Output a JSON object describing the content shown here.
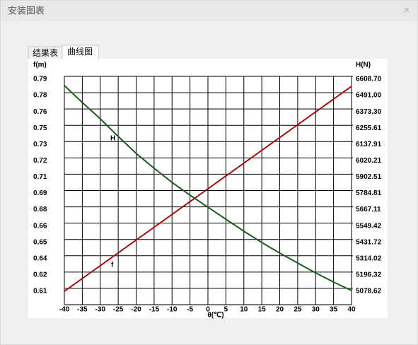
{
  "window": {
    "title": "安装图表",
    "close": "×"
  },
  "tabs": [
    "结果表",
    "曲线图"
  ],
  "chart_data": {
    "type": "line",
    "xlabel": "θ(℃)",
    "ylabel": "f(m)",
    "y2label": "H(N)",
    "x": [
      -40,
      -35,
      -30,
      -25,
      -20,
      -15,
      -10,
      -5,
      0,
      5,
      10,
      15,
      20,
      25,
      30,
      35,
      40
    ],
    "xlim": [
      -40,
      40
    ],
    "xticks": [
      -40,
      -35,
      -30,
      -25,
      -20,
      -15,
      -10,
      -5,
      0,
      5,
      10,
      15,
      20,
      25,
      30,
      35,
      40
    ],
    "ylim": [
      0.5945,
      0.7905
    ],
    "yticks": [
      {
        "value": 0.7905,
        "label": "0.79"
      },
      {
        "value": 0.7765,
        "label": "0.78"
      },
      {
        "value": 0.7625,
        "label": "0.76"
      },
      {
        "value": 0.7485,
        "label": "0.75"
      },
      {
        "value": 0.7345,
        "label": "0.73"
      },
      {
        "value": 0.7205,
        "label": "0.72"
      },
      {
        "value": 0.7065,
        "label": "0.71"
      },
      {
        "value": 0.6925,
        "label": "0.69"
      },
      {
        "value": 0.6785,
        "label": "0.68"
      },
      {
        "value": 0.6645,
        "label": "0.66"
      },
      {
        "value": 0.6505,
        "label": "0.65"
      },
      {
        "value": 0.6365,
        "label": "0.64"
      },
      {
        "value": 0.6225,
        "label": "0.62"
      },
      {
        "value": 0.6085,
        "label": "0.61"
      }
    ],
    "y2lim": [
      4960.92,
      6608.7
    ],
    "y2ticks": [
      {
        "value": 6608.7,
        "label": "6608.70"
      },
      {
        "value": 6491,
        "label": "6491.00"
      },
      {
        "value": 6373.3,
        "label": "6373.30"
      },
      {
        "value": 6255.61,
        "label": "6255.61"
      },
      {
        "value": 6137.91,
        "label": "6137.91"
      },
      {
        "value": 6020.21,
        "label": "6020.21"
      },
      {
        "value": 5902.51,
        "label": "5902.51"
      },
      {
        "value": 5784.81,
        "label": "5784.81"
      },
      {
        "value": 5667.11,
        "label": "5667.11"
      },
      {
        "value": 5549.42,
        "label": "5549.42"
      },
      {
        "value": 5431.72,
        "label": "5431.72"
      },
      {
        "value": 5314.02,
        "label": "5314.02"
      },
      {
        "value": 5196.32,
        "label": "5196.32"
      },
      {
        "value": 5078.62,
        "label": "5078.62"
      }
    ],
    "grid": true,
    "series": [
      {
        "name": "f",
        "color": "#a01010",
        "values": [
          0.606,
          0.617,
          0.628,
          0.639,
          0.65,
          0.661,
          0.672,
          0.683,
          0.694,
          0.705,
          0.716,
          0.727,
          0.738,
          0.749,
          0.76,
          0.771,
          0.782
        ]
      },
      {
        "name": "H",
        "color": "#1e5a1e",
        "axis": "y2",
        "values": [
          6542.4,
          6419.9,
          6302.6,
          6175.0,
          6052.6,
          5945.4,
          5843.4,
          5751.6,
          5664.8,
          5578.1,
          5491.4,
          5409.7,
          5333.2,
          5261.8,
          5190.3,
          5124.0,
          5062.8
        ]
      }
    ]
  }
}
